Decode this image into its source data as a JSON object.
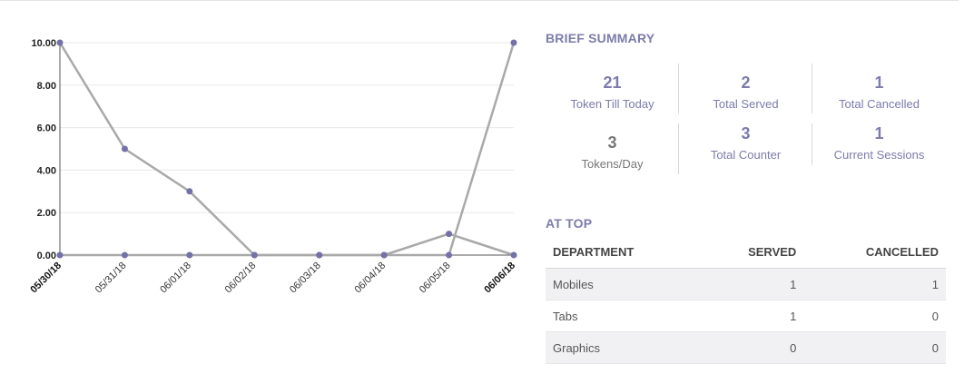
{
  "chart_data": {
    "type": "line",
    "x": [
      "05/30/18",
      "05/31/18",
      "06/01/18",
      "06/02/18",
      "06/03/18",
      "06/04/18",
      "06/05/18",
      "06/06/18"
    ],
    "ylim": [
      0,
      10
    ],
    "yticks": [
      "0.00",
      "2.00",
      "4.00",
      "6.00",
      "8.00",
      "10.00"
    ],
    "grid": true,
    "series": [
      {
        "values": [
          10,
          5,
          3,
          0,
          0,
          0,
          1,
          0
        ]
      },
      {
        "values": [
          0,
          0,
          0,
          0,
          0,
          0,
          0,
          10
        ]
      }
    ],
    "colors": {
      "line": "#a9a9a9",
      "point": "#7371a8",
      "grid": "#e8e8e8",
      "axis": "#444444"
    }
  },
  "summary": {
    "title": "BRIEF SUMMARY",
    "stats": [
      {
        "value": "21",
        "label": "Token Till Today"
      },
      {
        "value": "2",
        "label": "Total Served"
      },
      {
        "value": "1",
        "label": "Total Cancelled"
      },
      {
        "value": "3",
        "label": "Tokens/Day"
      },
      {
        "value": "3",
        "label": "Total Counter"
      },
      {
        "value": "1",
        "label": "Current Sessions"
      }
    ]
  },
  "at_top": {
    "title": "AT TOP",
    "headers": [
      "DEPARTMENT",
      "SERVED",
      "CANCELLED"
    ],
    "rows": [
      {
        "department": "Mobiles",
        "served": "1",
        "cancelled": "1"
      },
      {
        "department": "Tabs",
        "served": "1",
        "cancelled": "0"
      },
      {
        "department": "Graphics",
        "served": "0",
        "cancelled": "0"
      }
    ]
  },
  "accent": "#7c7bad"
}
